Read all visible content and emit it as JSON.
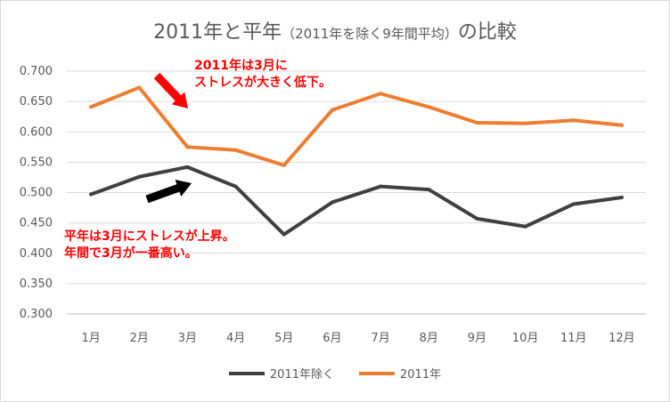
{
  "chart_data": {
    "type": "line",
    "title": "2011年と平年",
    "title_sub": "（2011年を除く9年間平均）",
    "title_tail": "の比較",
    "categories": [
      "1月",
      "2月",
      "3月",
      "4月",
      "5月",
      "6月",
      "7月",
      "8月",
      "9月",
      "10月",
      "11月",
      "12月"
    ],
    "ylim": [
      0.3,
      0.7
    ],
    "yticks": [
      "0.300",
      "0.350",
      "0.400",
      "0.450",
      "0.500",
      "0.550",
      "0.600",
      "0.650",
      "0.700"
    ],
    "grid": true,
    "legend_position": "bottom",
    "series": [
      {
        "name": "2011年除く",
        "color": "#404040",
        "values": [
          0.497,
          0.526,
          0.542,
          0.51,
          0.431,
          0.484,
          0.51,
          0.505,
          0.457,
          0.444,
          0.481,
          0.492
        ]
      },
      {
        "name": "2011年",
        "color": "#ed7d31",
        "values": [
          0.641,
          0.673,
          0.575,
          0.57,
          0.545,
          0.636,
          0.663,
          0.641,
          0.615,
          0.614,
          0.619,
          0.611
        ]
      }
    ],
    "annotations": [
      {
        "lines": [
          "2011年は3月に",
          "ストレスが大きく低下。"
        ],
        "color": "#ff0000"
      },
      {
        "lines": [
          "平年は3月にストレスが上昇。",
          "年間で3月が一番高い。"
        ],
        "color": "#ff0000"
      }
    ],
    "arrows": [
      {
        "color": "#ff0000",
        "points_to": "2011年 3月"
      },
      {
        "color": "#000000",
        "points_to": "2011年除く 3月"
      }
    ]
  }
}
